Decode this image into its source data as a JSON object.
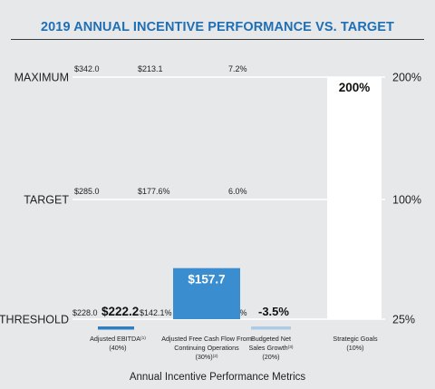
{
  "chart_data": {
    "type": "bar",
    "title": "2019 ANNUAL INCENTIVE PERFORMANCE VS. TARGET",
    "xlabel": "Annual Incentive Performance Metrics",
    "levels": [
      {
        "name": "THRESHOLD",
        "payout": "25%",
        "value": 25
      },
      {
        "name": "TARGET",
        "payout": "100%",
        "value": 100
      },
      {
        "name": "MAXIMUM",
        "payout": "200%",
        "value": 200
      }
    ],
    "ylim": [
      25,
      200
    ],
    "categories": [
      {
        "label_lines": [
          "Adjusted EBITDA(1)",
          "(40%)"
        ],
        "threshold_goal": "$228.0",
        "target_goal": "$285.0",
        "maximum_goal": "$342.0",
        "actual_label": "$222.2",
        "payout_value": 25,
        "color": "#2f7fc1",
        "bar_style": "marker"
      },
      {
        "label_lines": [
          "Adjusted Free Cash Flow From",
          "Continuing Operations",
          "(30%)(2)"
        ],
        "threshold_goal": "$142.1%",
        "target_goal": "$177.6%",
        "maximum_goal": "$213.1",
        "actual_label": "$157.7",
        "payout_value": 57,
        "color": "#3a8ed0",
        "bar_style": "bar"
      },
      {
        "label_lines": [
          "Budgeted Net",
          "Sales Growth(3)",
          "(20%)"
        ],
        "threshold_goal": "4.8%",
        "target_goal": "6.0%",
        "maximum_goal": "7.2%",
        "actual_label": "-3.5%",
        "payout_value": 25,
        "color": "#aecbe6",
        "bar_style": "marker"
      },
      {
        "label_lines": [
          "Strategic Goals",
          "(10%)"
        ],
        "threshold_goal": "",
        "target_goal": "",
        "maximum_goal": "",
        "actual_label": "200%",
        "payout_value": 200,
        "color": "#ffffff",
        "bar_style": "bar"
      }
    ],
    "colors": {
      "title": "#1f6fb5",
      "background": "#e7e8ea",
      "gridline": "#ffffff"
    }
  }
}
